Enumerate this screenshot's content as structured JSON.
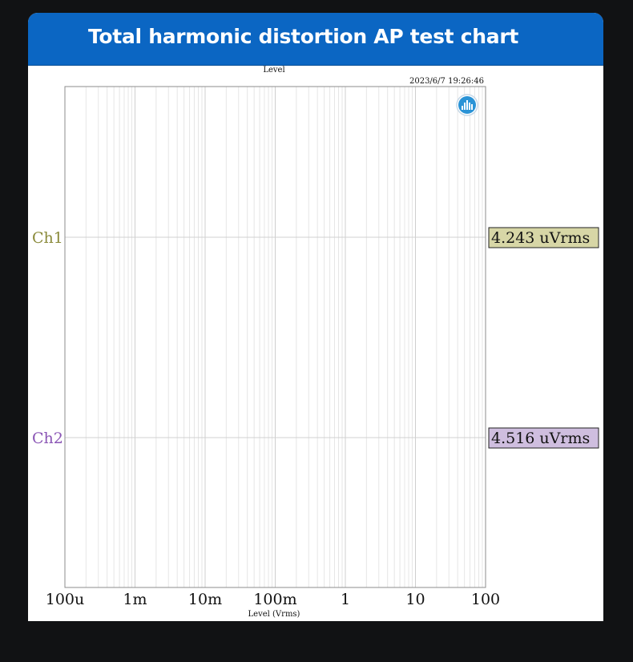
{
  "header": {
    "title": "Total harmonic distortion AP test chart"
  },
  "colors": {
    "header_bg": "#0b66c3",
    "ch1": "#8a8a3a",
    "ch2": "#8a55b5",
    "ch1_box": "#d7d6a6",
    "ch2_box": "#cfbedf",
    "grid": "#d9d9d9",
    "logo": "#2a93d6"
  },
  "chart_data": {
    "type": "line",
    "title": "Level",
    "timestamp": "2023/6/7 19:26:46",
    "xlabel": "Level (Vrms)",
    "x_scale": "log",
    "xlim": [
      0.0001,
      100
    ],
    "x_ticks": [
      "100u",
      "1m",
      "10m",
      "100m",
      "1",
      "10",
      "100"
    ],
    "grid": true,
    "series": [
      {
        "name": "Ch1",
        "readout": "4.243 uVrms"
      },
      {
        "name": "Ch2",
        "readout": "4.516 uVrms"
      }
    ],
    "logo_icon": "audio-precision-logo-icon"
  }
}
